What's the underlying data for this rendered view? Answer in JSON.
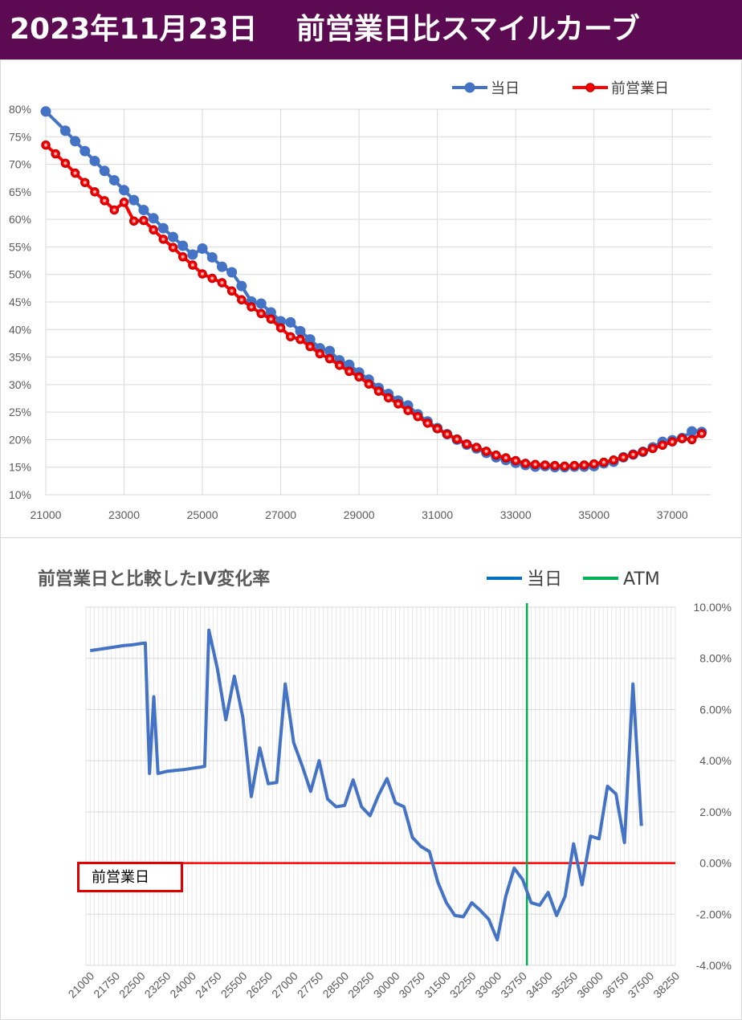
{
  "page_title": "2023年11月23日　 前営業日比スマイルカーブ",
  "chart_data": [
    {
      "type": "line",
      "title": "",
      "xlabel": "",
      "ylabel": "",
      "xlim": [
        21000,
        38000
      ],
      "ylim": [
        0.1,
        0.8
      ],
      "x_ticks": [
        "21000",
        "23000",
        "25000",
        "27000",
        "29000",
        "31000",
        "33000",
        "35000",
        "37000"
      ],
      "y_ticks": [
        "10%",
        "15%",
        "20%",
        "25%",
        "30%",
        "35%",
        "40%",
        "45%",
        "50%",
        "55%",
        "60%",
        "65%",
        "70%",
        "75%",
        "80%"
      ],
      "grid": true,
      "legend_position": "top-right",
      "series": [
        {
          "name": "当日",
          "color": "#4472c4",
          "points": [
            [
              21000,
              0.796
            ],
            [
              21500,
              0.761
            ],
            [
              21750,
              0.742
            ],
            [
              22000,
              0.724
            ],
            [
              22250,
              0.706
            ],
            [
              22500,
              0.688
            ],
            [
              22750,
              0.671
            ],
            [
              23000,
              0.653
            ],
            [
              23250,
              0.635
            ],
            [
              23500,
              0.617
            ],
            [
              23750,
              0.602
            ],
            [
              24000,
              0.584
            ],
            [
              24250,
              0.568
            ],
            [
              24500,
              0.552
            ],
            [
              24750,
              0.536
            ],
            [
              25000,
              0.547
            ],
            [
              25250,
              0.531
            ],
            [
              25500,
              0.514
            ],
            [
              25750,
              0.504
            ],
            [
              26000,
              0.479
            ],
            [
              26250,
              0.451
            ],
            [
              26500,
              0.447
            ],
            [
              26750,
              0.431
            ],
            [
              27000,
              0.415
            ],
            [
              27250,
              0.413
            ],
            [
              27500,
              0.397
            ],
            [
              27750,
              0.382
            ],
            [
              28000,
              0.366
            ],
            [
              28250,
              0.361
            ],
            [
              28500,
              0.344
            ],
            [
              28750,
              0.336
            ],
            [
              29000,
              0.322
            ],
            [
              29250,
              0.309
            ],
            [
              29500,
              0.294
            ],
            [
              29750,
              0.283
            ],
            [
              30000,
              0.271
            ],
            [
              30250,
              0.262
            ],
            [
              30500,
              0.246
            ],
            [
              30750,
              0.233
            ],
            [
              31000,
              0.221
            ],
            [
              31250,
              0.21
            ],
            [
              31500,
              0.2
            ],
            [
              31750,
              0.191
            ],
            [
              32000,
              0.184
            ],
            [
              32250,
              0.176
            ],
            [
              32500,
              0.168
            ],
            [
              32750,
              0.163
            ],
            [
              33000,
              0.158
            ],
            [
              33250,
              0.154
            ],
            [
              33500,
              0.151
            ],
            [
              33750,
              0.152
            ],
            [
              34000,
              0.15
            ],
            [
              34250,
              0.15
            ],
            [
              34500,
              0.151
            ],
            [
              34750,
              0.151
            ],
            [
              35000,
              0.152
            ],
            [
              35250,
              0.157
            ],
            [
              35500,
              0.16
            ],
            [
              35750,
              0.168
            ],
            [
              36000,
              0.173
            ],
            [
              36250,
              0.178
            ],
            [
              36500,
              0.186
            ],
            [
              36750,
              0.196
            ],
            [
              37000,
              0.199
            ],
            [
              37250,
              0.203
            ],
            [
              37500,
              0.215
            ],
            [
              37750,
              0.214
            ]
          ]
        },
        {
          "name": "前営業日",
          "color": "#ff0000",
          "points": [
            [
              21000,
              0.735
            ],
            [
              21250,
              0.719
            ],
            [
              21500,
              0.702
            ],
            [
              21750,
              0.684
            ],
            [
              22000,
              0.667
            ],
            [
              22250,
              0.65
            ],
            [
              22500,
              0.634
            ],
            [
              22750,
              0.617
            ],
            [
              23000,
              0.631
            ],
            [
              23250,
              0.597
            ],
            [
              23500,
              0.598
            ],
            [
              23750,
              0.581
            ],
            [
              24000,
              0.564
            ],
            [
              24250,
              0.549
            ],
            [
              24500,
              0.532
            ],
            [
              24750,
              0.517
            ],
            [
              25000,
              0.501
            ],
            [
              25250,
              0.493
            ],
            [
              25500,
              0.485
            ],
            [
              25750,
              0.47
            ],
            [
              26000,
              0.454
            ],
            [
              26250,
              0.441
            ],
            [
              26500,
              0.429
            ],
            [
              26750,
              0.419
            ],
            [
              27000,
              0.403
            ],
            [
              27250,
              0.387
            ],
            [
              27500,
              0.382
            ],
            [
              27750,
              0.369
            ],
            [
              28000,
              0.356
            ],
            [
              28250,
              0.347
            ],
            [
              28500,
              0.335
            ],
            [
              28750,
              0.324
            ],
            [
              29000,
              0.314
            ],
            [
              29250,
              0.301
            ],
            [
              29500,
              0.288
            ],
            [
              29750,
              0.276
            ],
            [
              30000,
              0.265
            ],
            [
              30250,
              0.253
            ],
            [
              30500,
              0.242
            ],
            [
              30750,
              0.23
            ],
            [
              31000,
              0.22
            ],
            [
              31250,
              0.21
            ],
            [
              31500,
              0.201
            ],
            [
              31750,
              0.192
            ],
            [
              32000,
              0.186
            ],
            [
              32250,
              0.179
            ],
            [
              32500,
              0.172
            ],
            [
              32750,
              0.167
            ],
            [
              33000,
              0.162
            ],
            [
              33250,
              0.157
            ],
            [
              33500,
              0.155
            ],
            [
              33750,
              0.154
            ],
            [
              34000,
              0.153
            ],
            [
              34250,
              0.152
            ],
            [
              34500,
              0.153
            ],
            [
              34750,
              0.154
            ],
            [
              35000,
              0.156
            ],
            [
              35250,
              0.159
            ],
            [
              35500,
              0.163
            ],
            [
              35750,
              0.168
            ],
            [
              36000,
              0.173
            ],
            [
              36250,
              0.178
            ],
            [
              36500,
              0.184
            ],
            [
              36750,
              0.19
            ],
            [
              37000,
              0.196
            ],
            [
              37250,
              0.202
            ],
            [
              37500,
              0.2
            ],
            [
              37750,
              0.211
            ]
          ]
        }
      ]
    },
    {
      "type": "line",
      "title": "前営業日と比較したIV変化率",
      "xlabel": "",
      "ylabel": "",
      "ylim": [
        -0.04,
        0.1
      ],
      "x_ticks": [
        "21000",
        "21750",
        "22500",
        "23250",
        "24000",
        "24750",
        "25500",
        "26250",
        "27000",
        "27750",
        "28500",
        "29250",
        "30000",
        "30750",
        "31500",
        "32250",
        "33000",
        "33750",
        "34500",
        "35250",
        "36000",
        "36750",
        "37500",
        "38250"
      ],
      "x_tick_values": [
        21000,
        21750,
        22500,
        23250,
        24000,
        24750,
        25500,
        26250,
        27000,
        27750,
        28500,
        29250,
        30000,
        30750,
        31500,
        32250,
        33000,
        33750,
        34500,
        35250,
        36000,
        36750,
        37500,
        38250
      ],
      "xlim": [
        20875,
        38250
      ],
      "y_ticks": [
        "10.00%",
        "8.00%",
        "6.00%",
        "4.00%",
        "2.00%",
        "0.00%",
        "-2.00%",
        "-4.00%"
      ],
      "y_tick_values": [
        0.1,
        0.08,
        0.06,
        0.04,
        0.02,
        0.0,
        -0.02,
        -0.04
      ],
      "grid": true,
      "legend_position": "top-right",
      "annotation": "前営業日",
      "atm_x": 33875,
      "series": [
        {
          "name": "当日",
          "color": "#4472c4",
          "points": [
            [
              21000,
              0.083
            ],
            [
              21250,
              0.0835
            ],
            [
              21500,
              0.084
            ],
            [
              21750,
              0.0845
            ],
            [
              22000,
              0.085
            ],
            [
              22250,
              0.0853
            ],
            [
              22500,
              0.0858
            ],
            [
              22625,
              0.086
            ],
            [
              22750,
              0.035
            ],
            [
              22875,
              0.065
            ],
            [
              23000,
              0.035
            ],
            [
              23250,
              0.0358
            ],
            [
              23500,
              0.0362
            ],
            [
              23750,
              0.0365
            ],
            [
              24000,
              0.037
            ],
            [
              24250,
              0.0375
            ],
            [
              24375,
              0.0378
            ],
            [
              24500,
              0.091
            ],
            [
              24750,
              0.076
            ],
            [
              25000,
              0.056
            ],
            [
              25250,
              0.073
            ],
            [
              25500,
              0.057
            ],
            [
              25750,
              0.026
            ],
            [
              26000,
              0.045
            ],
            [
              26250,
              0.031
            ],
            [
              26500,
              0.0315
            ],
            [
              26750,
              0.07
            ],
            [
              27000,
              0.047
            ],
            [
              27250,
              0.038
            ],
            [
              27500,
              0.028
            ],
            [
              27750,
              0.04
            ],
            [
              28000,
              0.025
            ],
            [
              28250,
              0.022
            ],
            [
              28500,
              0.0225
            ],
            [
              28750,
              0.0325
            ],
            [
              29000,
              0.022
            ],
            [
              29250,
              0.0185
            ],
            [
              29500,
              0.0265
            ],
            [
              29750,
              0.033
            ],
            [
              30000,
              0.0235
            ],
            [
              30250,
              0.022
            ],
            [
              30500,
              0.01
            ],
            [
              30750,
              0.0065
            ],
            [
              31000,
              0.0045
            ],
            [
              31250,
              -0.0075
            ],
            [
              31500,
              -0.0155
            ],
            [
              31750,
              -0.0205
            ],
            [
              32000,
              -0.021
            ],
            [
              32250,
              -0.0155
            ],
            [
              32500,
              -0.0185
            ],
            [
              32750,
              -0.022
            ],
            [
              33000,
              -0.03
            ],
            [
              33250,
              -0.013
            ],
            [
              33500,
              -0.002
            ],
            [
              33750,
              -0.0065
            ],
            [
              34000,
              -0.0155
            ],
            [
              34250,
              -0.0165
            ],
            [
              34500,
              -0.0115
            ],
            [
              34750,
              -0.0205
            ],
            [
              35000,
              -0.013
            ],
            [
              35250,
              0.0075
            ],
            [
              35500,
              -0.0085
            ],
            [
              35750,
              0.0105
            ],
            [
              36000,
              0.0095
            ],
            [
              36250,
              0.03
            ],
            [
              36500,
              0.027
            ],
            [
              36750,
              0.008
            ],
            [
              37000,
              0.07
            ],
            [
              37250,
              0.0145
            ]
          ]
        },
        {
          "name": "ATM",
          "color": "#00b050",
          "points": []
        },
        {
          "name": "前営業日",
          "color": "#ff0000",
          "points": [
            [
              20875,
              0.0
            ],
            [
              38250,
              0.0
            ]
          ]
        }
      ]
    }
  ]
}
